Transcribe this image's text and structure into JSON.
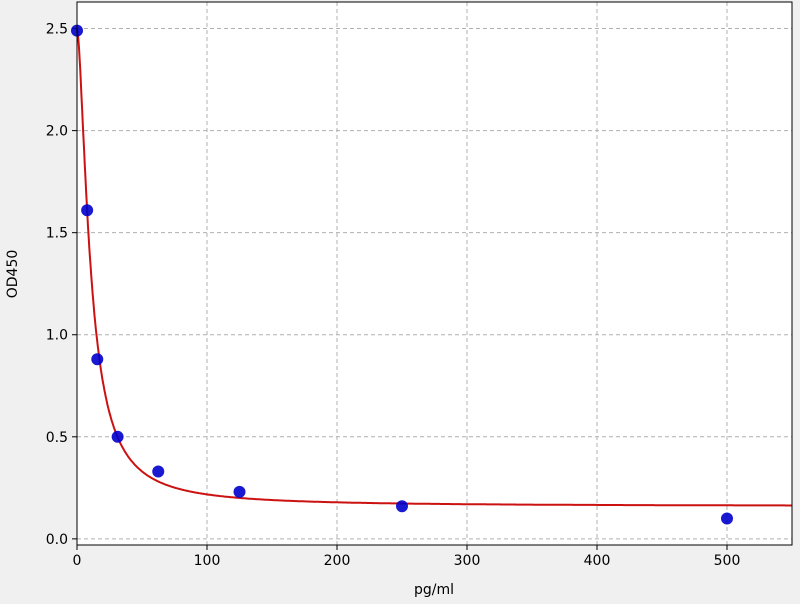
{
  "chart_data": {
    "type": "scatter",
    "title": "",
    "xlabel": "pg/ml",
    "ylabel": "OD450",
    "xlim": [
      0,
      550
    ],
    "ylim": [
      -0.03,
      2.63
    ],
    "xticks": [
      0,
      100,
      200,
      300,
      400,
      500
    ],
    "xtick_labels": [
      "0",
      "100",
      "200",
      "300",
      "400",
      "500"
    ],
    "yticks": [
      0.0,
      0.5,
      1.0,
      1.5,
      2.0,
      2.5
    ],
    "ytick_labels": [
      "0.0",
      "0.5",
      "1.0",
      "1.5",
      "2.0",
      "2.5"
    ],
    "grid": true,
    "points": {
      "x": [
        0,
        7.8,
        15.6,
        31.25,
        62.5,
        125,
        250,
        500
      ],
      "y": [
        2.49,
        1.61,
        0.88,
        0.5,
        0.33,
        0.23,
        0.16,
        0.1
      ],
      "color": "#0000cc"
    },
    "fit_curve": {
      "model": "4PL",
      "a": 2.5,
      "b": 1.63,
      "c": 10.5,
      "d": 0.16,
      "color": "#cc1111"
    }
  }
}
